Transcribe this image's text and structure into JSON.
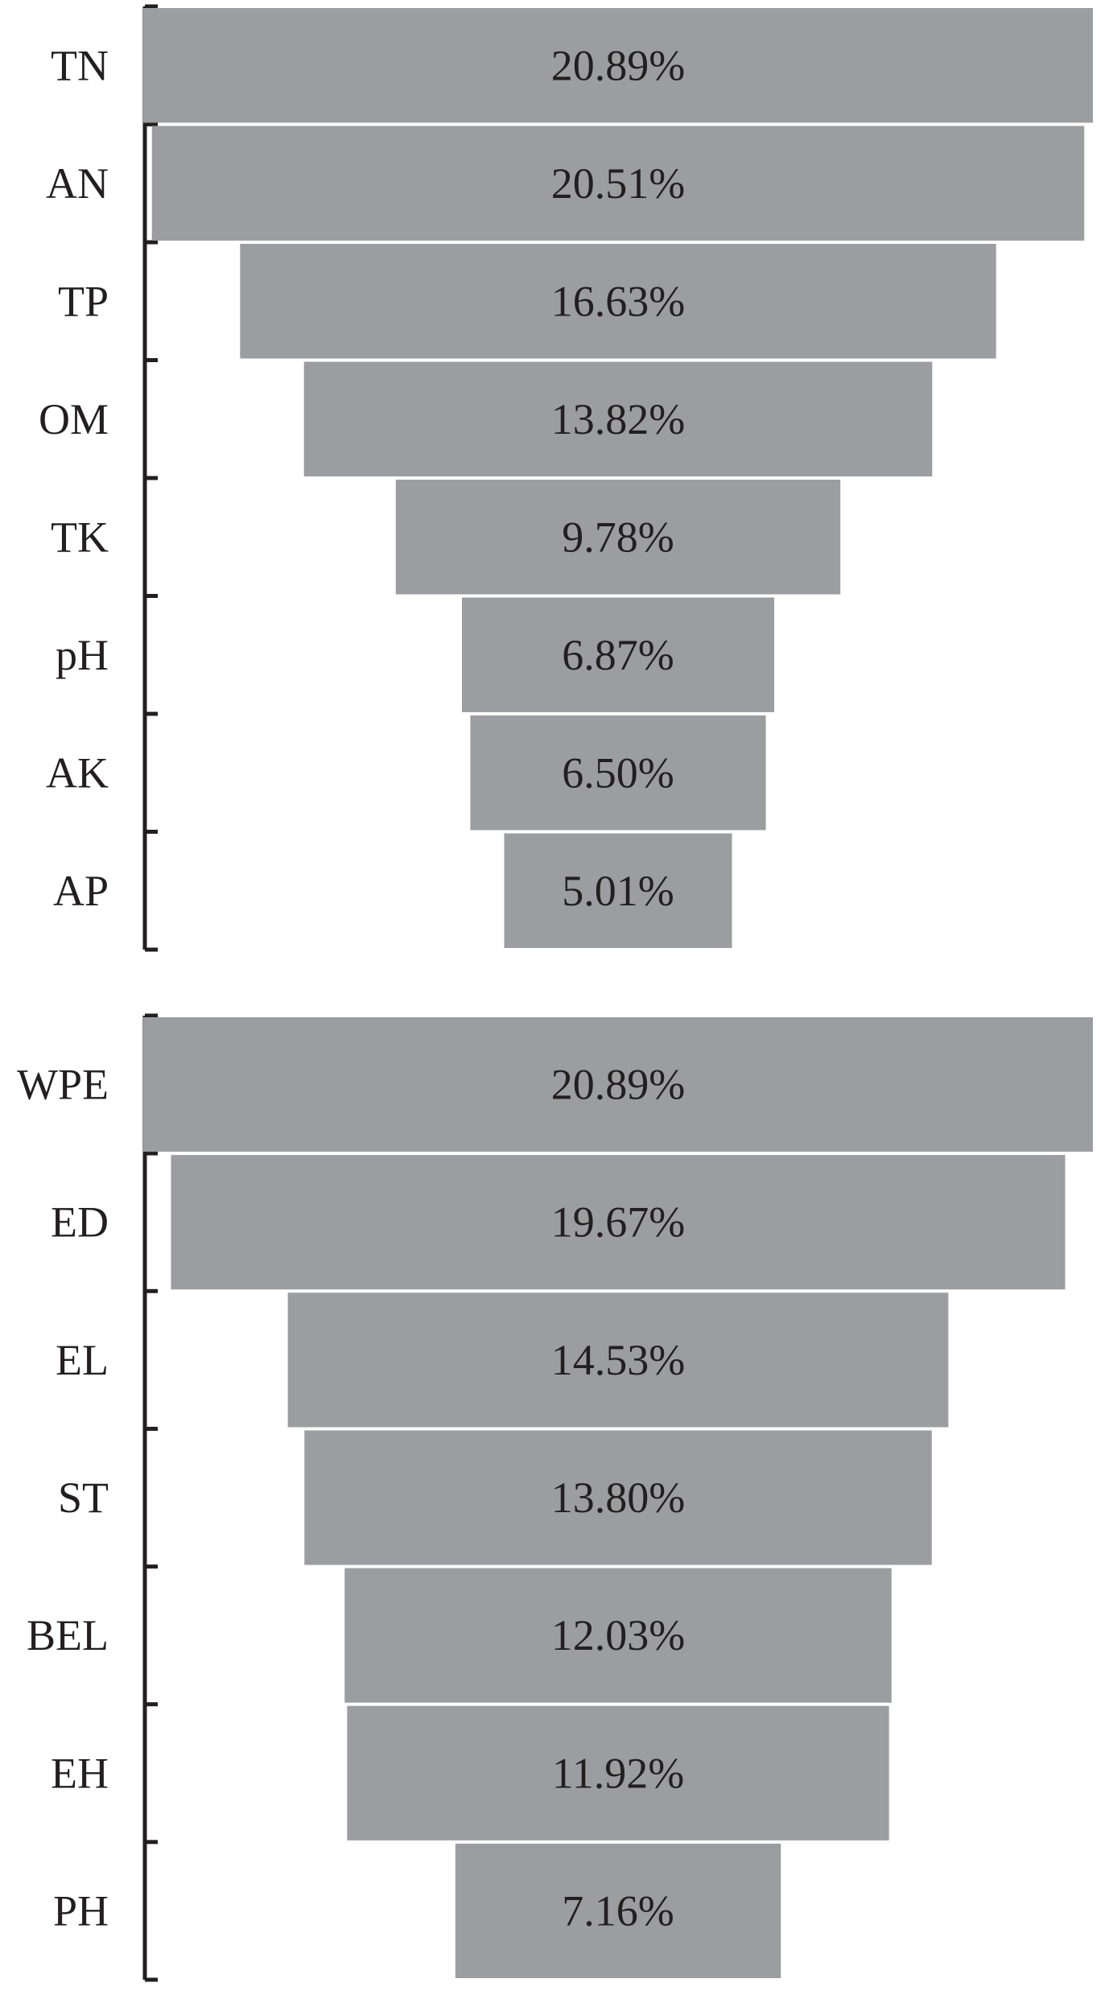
{
  "chart_data": [
    {
      "type": "bar",
      "orientation": "horizontal-funnel",
      "categories": [
        "TN",
        "AN",
        "TP",
        "OM",
        "TK",
        "pH",
        "AK",
        "AP"
      ],
      "values": [
        20.89,
        20.51,
        16.63,
        13.82,
        9.78,
        6.87,
        6.5,
        5.01
      ],
      "value_labels": [
        "20.89%",
        "20.51%",
        "16.63%",
        "13.82%",
        "9.78%",
        "6.87%",
        "6.50%",
        "5.01%"
      ],
      "unit": "%",
      "grid": false,
      "legend": "none"
    },
    {
      "type": "bar",
      "orientation": "horizontal-funnel",
      "categories": [
        "WPE",
        "ED",
        "EL",
        "ST",
        "BEL",
        "EH",
        "PH"
      ],
      "values": [
        20.89,
        19.67,
        14.53,
        13.8,
        12.03,
        11.92,
        7.16
      ],
      "value_labels": [
        "20.89%",
        "19.67%",
        "14.53%",
        "13.80%",
        "12.03%",
        "11.92%",
        "7.16%"
      ],
      "unit": "%",
      "grid": false,
      "legend": "none"
    }
  ],
  "colors": {
    "bar": "#9c9da1",
    "text": "#231f20",
    "axis": "#231f20"
  }
}
